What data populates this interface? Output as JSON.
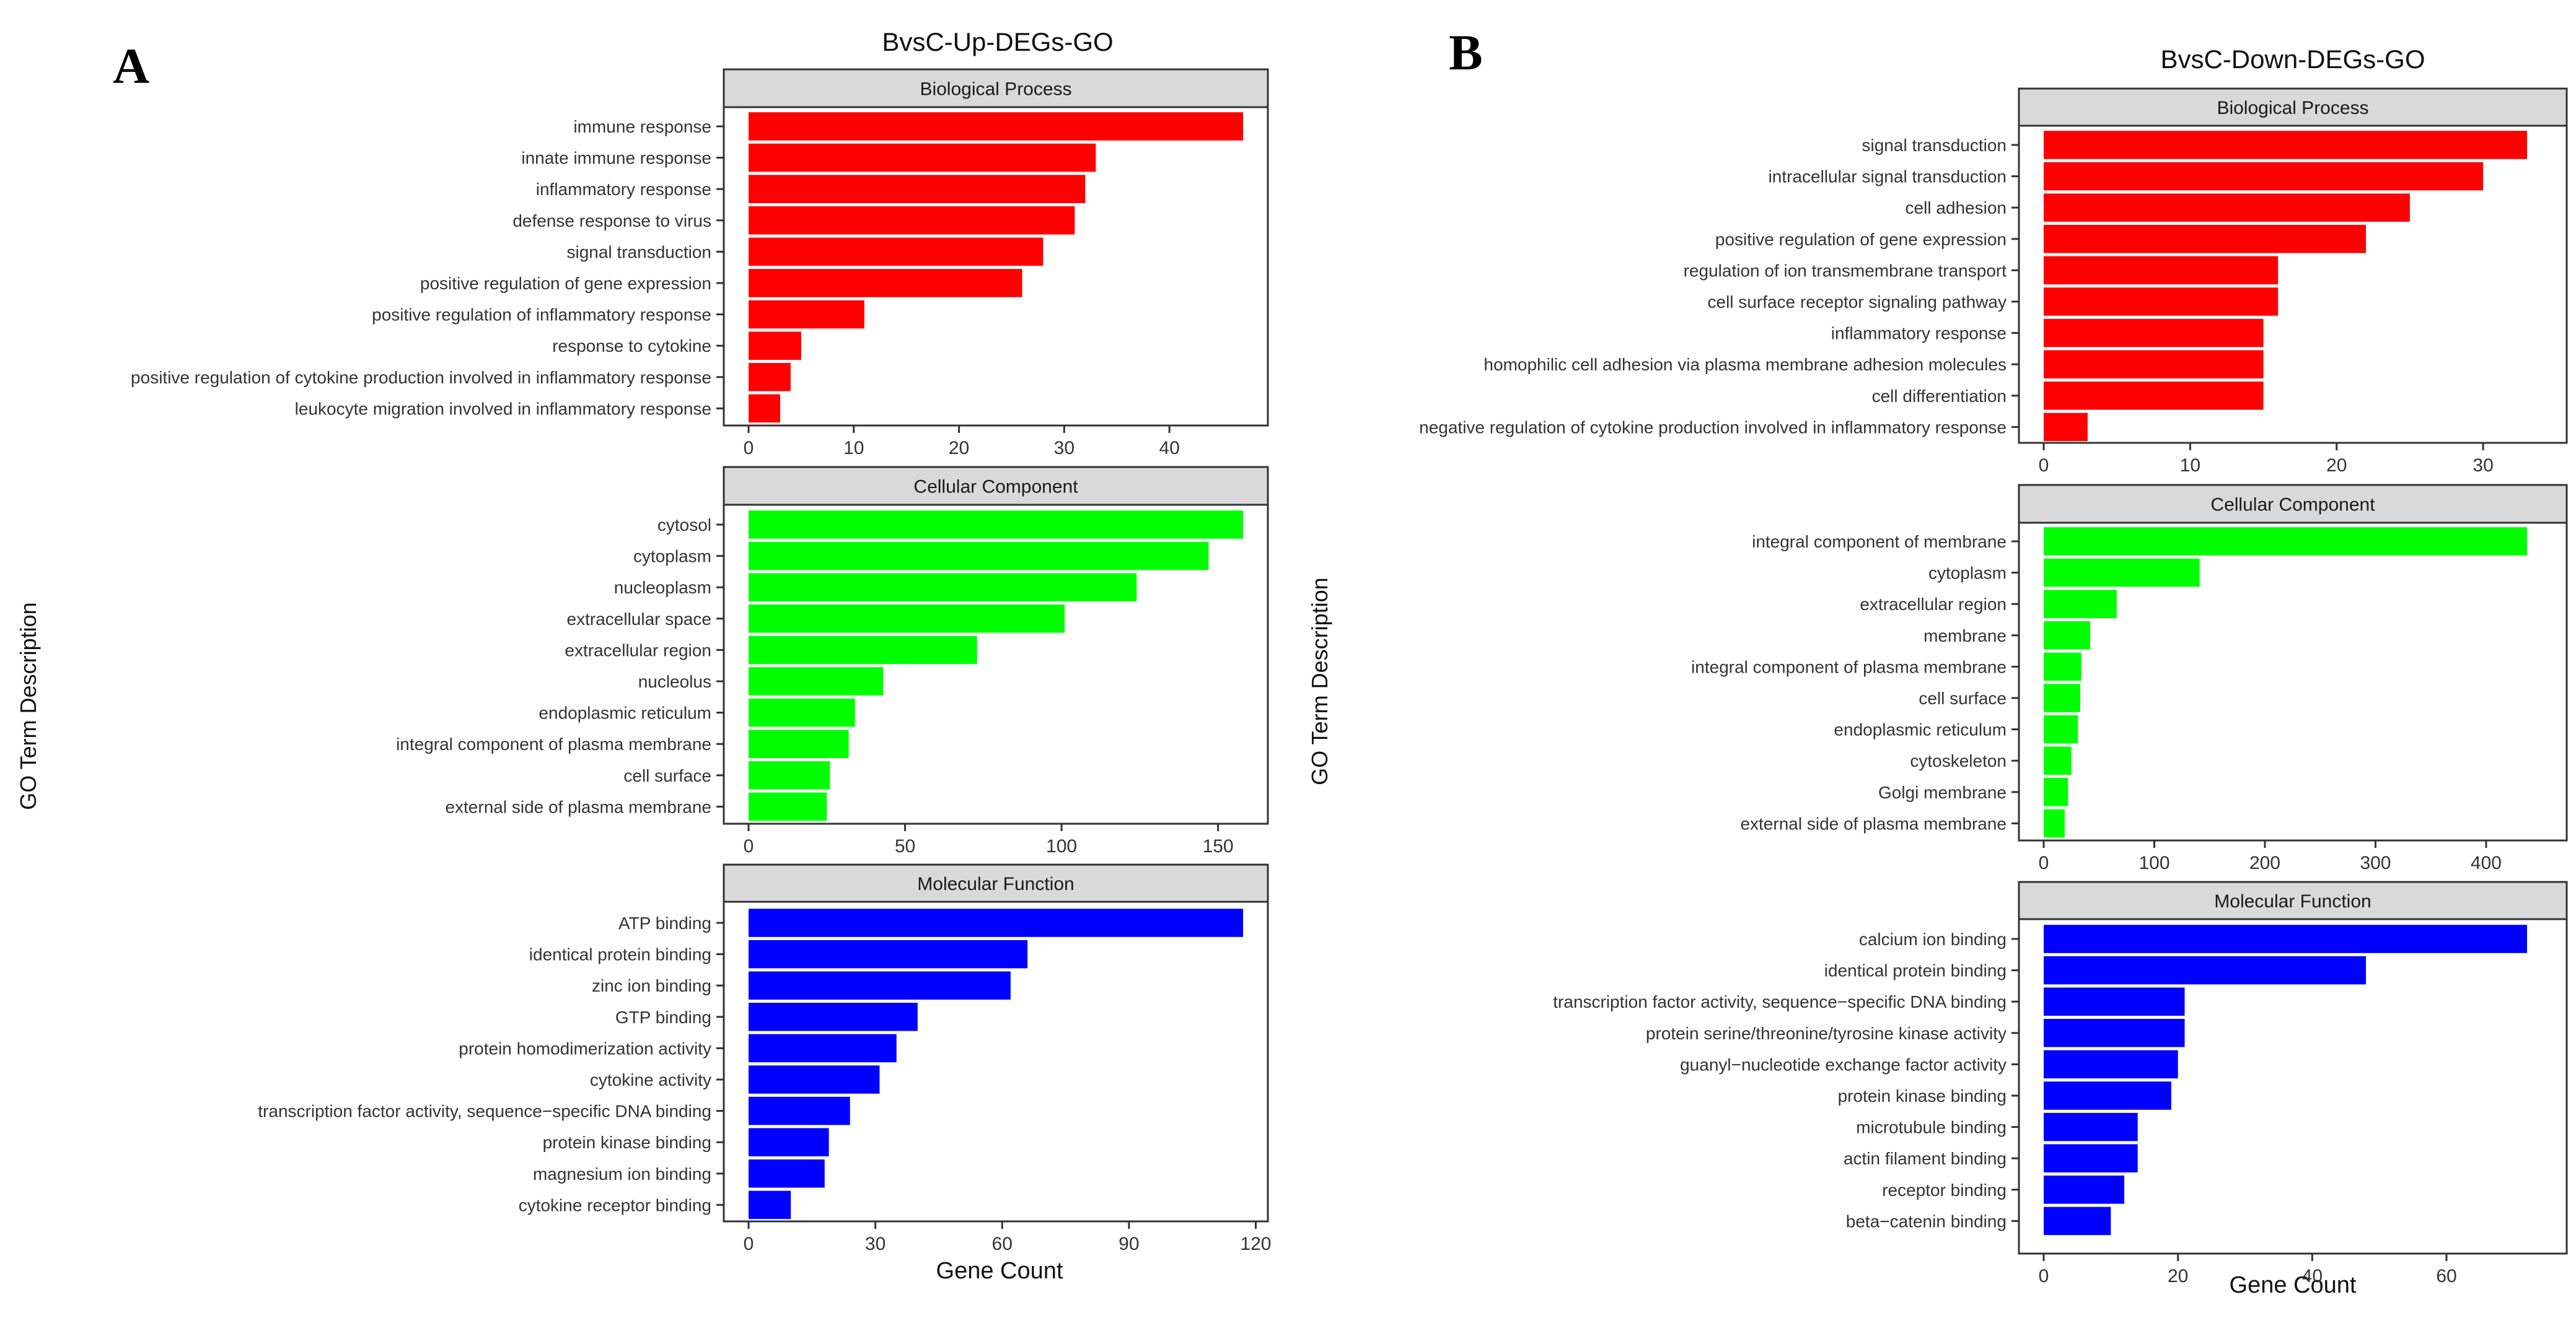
{
  "panels": [
    {
      "letter": "A",
      "title": "BvsC-Up-DEGs-GO",
      "ylabel": "GO Term Description",
      "xlabel": "Gene Count",
      "facets": [
        {
          "strip_label": "Biological Process",
          "color": "#ff0000",
          "xlim": [
            0,
            47
          ],
          "ticks": [
            0,
            10,
            20,
            30,
            40
          ],
          "terms": [
            "immune response",
            "innate immune response",
            "inflammatory response",
            "defense response to virus",
            "signal transduction",
            "positive regulation of gene expression",
            "positive regulation of inflammatory response",
            "response to cytokine",
            "positive regulation of cytokine production involved in inflammatory response",
            "leukocyte migration involved in inflammatory response"
          ],
          "values": [
            47,
            33,
            32,
            31,
            28,
            26,
            11,
            5,
            4,
            3
          ]
        },
        {
          "strip_label": "Cellular Component",
          "color": "#00ff00",
          "xlim": [
            0,
            158
          ],
          "ticks": [
            0,
            50,
            100,
            150
          ],
          "terms": [
            "cytosol",
            "cytoplasm",
            "nucleoplasm",
            "extracellular space",
            "extracellular region",
            "nucleolus",
            "endoplasmic reticulum",
            "integral component of plasma membrane",
            "cell surface",
            "external side of plasma membrane"
          ],
          "values": [
            158,
            147,
            124,
            101,
            73,
            43,
            34,
            32,
            26,
            25
          ]
        },
        {
          "strip_label": "Molecular Function",
          "color": "#0000ff",
          "xlim": [
            0,
            117
          ],
          "ticks": [
            0,
            30,
            60,
            90,
            120
          ],
          "terms": [
            "ATP binding",
            "identical protein binding",
            "zinc ion binding",
            "GTP binding",
            "protein homodimerization activity",
            "cytokine activity",
            "transcription factor activity, sequence−specific DNA binding",
            "protein kinase binding",
            "magnesium ion binding",
            "cytokine receptor binding"
          ],
          "values": [
            117,
            66,
            62,
            40,
            35,
            31,
            24,
            19,
            18,
            10
          ]
        }
      ]
    },
    {
      "letter": "B",
      "title": "BvsC-Down-DEGs-GO",
      "ylabel": "GO Term Description",
      "xlabel": "Gene Count",
      "facets": [
        {
          "strip_label": "Biological Process",
          "color": "#ff0000",
          "xlim": [
            0,
            33
          ],
          "ticks": [
            0,
            10,
            20,
            30
          ],
          "terms": [
            "signal transduction",
            "intracellular signal transduction",
            "cell adhesion",
            "positive regulation of gene expression",
            "regulation of ion transmembrane transport",
            "cell surface receptor signaling pathway",
            "inflammatory response",
            "homophilic cell adhesion via plasma membrane adhesion molecules",
            "cell differentiation",
            "negative regulation of cytokine production involved in inflammatory response"
          ],
          "values": [
            33,
            30,
            25,
            22,
            16,
            16,
            15,
            15,
            15,
            3
          ]
        },
        {
          "strip_label": "Cellular Component",
          "color": "#00ff00",
          "xlim": [
            0,
            437
          ],
          "ticks": [
            0,
            100,
            200,
            300,
            400
          ],
          "terms": [
            "integral component of membrane",
            "cytoplasm",
            "extracellular region",
            "membrane",
            "integral component of plasma membrane",
            "cell surface",
            "endoplasmic reticulum",
            "cytoskeleton",
            "Golgi membrane",
            "external side of plasma membrane"
          ],
          "values": [
            437,
            141,
            66,
            42,
            34,
            33,
            31,
            25,
            22,
            19
          ]
        },
        {
          "strip_label": "Molecular Function",
          "color": "#0000ff",
          "xlim": [
            0,
            72
          ],
          "ticks": [
            0,
            20,
            40,
            60
          ],
          "terms": [
            "calcium ion binding",
            "identical protein binding",
            "transcription factor activity, sequence−specific DNA binding",
            "protein serine/threonine/tyrosine kinase activity",
            "guanyl−nucleotide exchange factor activity",
            "protein kinase binding",
            "microtubule binding",
            "actin filament binding",
            "receptor binding",
            "beta−catenin binding"
          ],
          "values": [
            72,
            48,
            21,
            21,
            20,
            19,
            14,
            14,
            12,
            10
          ]
        }
      ]
    }
  ],
  "chart_data": [
    {
      "type": "bar",
      "title": "BvsC-Up-DEGs-GO",
      "xlabel": "Gene Count",
      "ylabel": "GO Term Description",
      "orientation": "horizontal",
      "grid": false,
      "facets": [
        "Biological Process",
        "Cellular Component",
        "Molecular Function"
      ]
    },
    {
      "type": "bar",
      "title": "BvsC-Down-DEGs-GO",
      "xlabel": "Gene Count",
      "ylabel": "GO Term Description",
      "orientation": "horizontal",
      "grid": false,
      "facets": [
        "Biological Process",
        "Cellular Component",
        "Molecular Function"
      ]
    }
  ]
}
